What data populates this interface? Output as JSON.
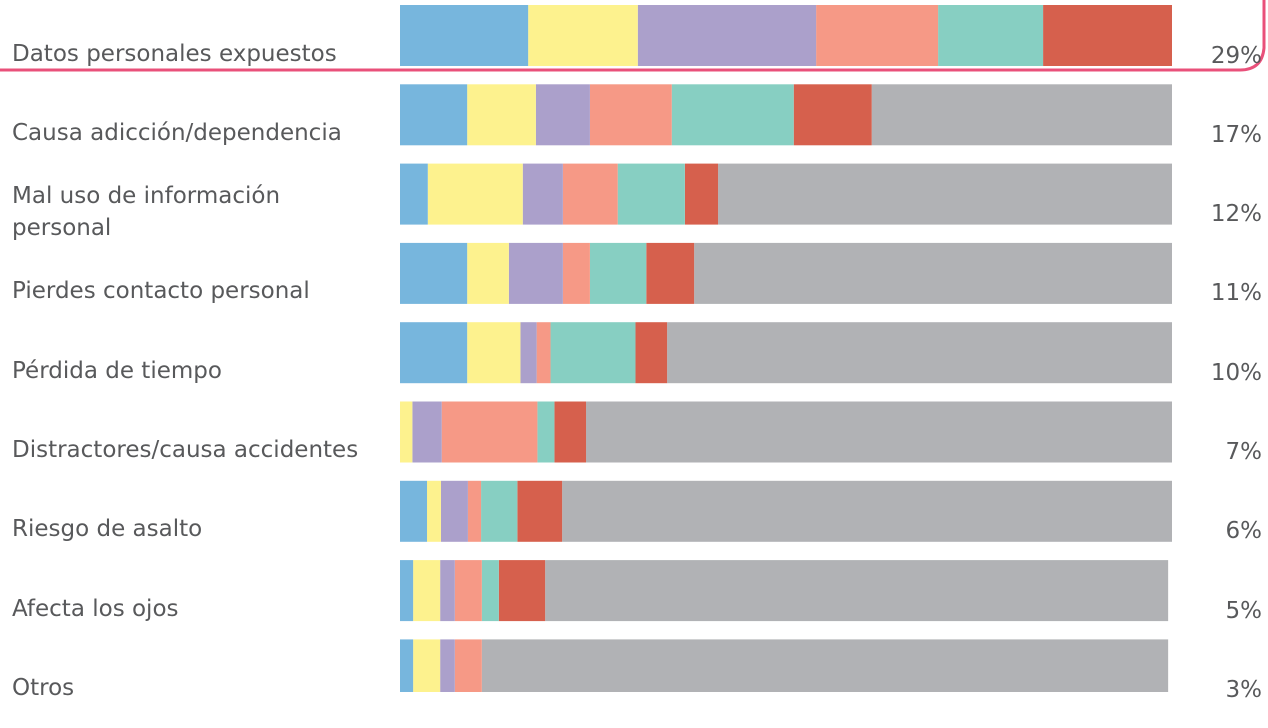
{
  "chart_data": {
    "type": "stacked-bar",
    "categories": [
      "Datos personales expuestos",
      "Causa adicción/dependencia",
      "Mal uso de información personal",
      "Pierdes contacto personal",
      "Pérdida de tiempo",
      "Distractores/causa accidentes",
      "Riesgo de asalto",
      "Afecta los ojos",
      "Otros"
    ],
    "shares": [
      "29%",
      "17%",
      "12%",
      "11%",
      "10%",
      "7%",
      "6%",
      "5%",
      "3%"
    ],
    "xlim": [
      0,
      100
    ],
    "series": [
      {
        "color": "#77b6dd",
        "values": [
          16.6,
          8.7,
          3.6,
          8.7,
          8.7,
          0,
          3.5,
          1.7,
          1.7
        ]
      },
      {
        "color": "#fdf28e",
        "values": [
          14.2,
          8.9,
          12.3,
          5.4,
          6.9,
          1.6,
          1.8,
          3.5,
          3.5
        ]
      },
      {
        "color": "#aba0cb",
        "values": [
          23.1,
          7.0,
          5.2,
          7.0,
          2.1,
          3.8,
          3.5,
          1.9,
          1.9
        ]
      },
      {
        "color": "#f69986",
        "values": [
          15.8,
          10.6,
          7.1,
          3.5,
          1.8,
          12.4,
          1.7,
          3.5,
          3.5
        ]
      },
      {
        "color": "#87cfc2",
        "values": [
          13.6,
          15.8,
          8.7,
          7.3,
          11.0,
          2.2,
          4.7,
          2.2,
          0
        ]
      },
      {
        "color": "#d6604d",
        "values": [
          16.7,
          10.1,
          4.3,
          6.2,
          4.1,
          4.1,
          5.8,
          6.0,
          0
        ]
      },
      {
        "color": "#b1b2b5",
        "values": [
          0,
          38.9,
          58.8,
          61.9,
          65.4,
          75.9,
          79.0,
          80.7,
          88.9
        ]
      }
    ]
  }
}
